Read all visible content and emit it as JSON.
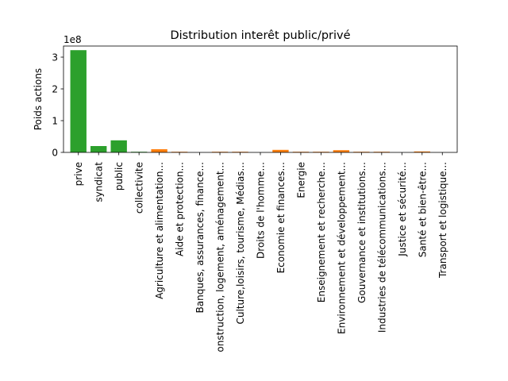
{
  "chart_data": {
    "type": "bar",
    "title": "Distribution interêt public/privé",
    "xlabel": "",
    "ylabel": "Poids actions",
    "y_scale_label": "1e8",
    "ylim": [
      0,
      3.35
    ],
    "yticks": [
      0,
      1,
      2,
      3
    ],
    "grid": false,
    "categories": [
      "prive",
      "syndicat",
      "public",
      "collectivite",
      "Agriculture et alimentation...",
      "Aide et protection...",
      "Banques, assurances, finance...",
      "onstruction, logement, aménagement...",
      "Culture,loisirs, tourisme, Médias...",
      "Droits de l'homme...",
      "Economie et finances...",
      "Energie",
      "Enseignement et recherche...",
      "Environnement et développement...",
      "Gouvernance et institutions...",
      "Industries de télécommunications...",
      "Justice et sécurité...",
      "Santé et bien-être...",
      "Transport et logistique..."
    ],
    "values": [
      3.22,
      0.2,
      0.38,
      0.02,
      0.1,
      0.02,
      0.0,
      0.02,
      0.02,
      0.0,
      0.08,
      0.02,
      0.02,
      0.07,
      0.02,
      0.02,
      0.0,
      0.03,
      0.0
    ],
    "colors": [
      "#2ca02c",
      "#2ca02c",
      "#2ca02c",
      "#2ca02c",
      "#ff7f0e",
      "#ff7f0e",
      "#ff7f0e",
      "#ff7f0e",
      "#ff7f0e",
      "#ff7f0e",
      "#ff7f0e",
      "#ff7f0e",
      "#ff7f0e",
      "#ff7f0e",
      "#ff7f0e",
      "#ff7f0e",
      "#ff7f0e",
      "#ff7f0e",
      "#ff7f0e"
    ]
  }
}
